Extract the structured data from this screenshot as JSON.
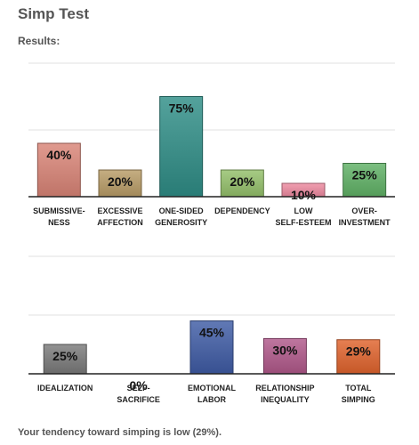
{
  "page": {
    "title": "Simp Test",
    "results_label": "Results:",
    "summary": "Your tendency toward simping is low (29%)."
  },
  "chart_data": [
    {
      "type": "bar",
      "ylim": [
        0,
        100
      ],
      "grid": true,
      "categories": [
        [
          "SUBMISSIVE-",
          "NESS"
        ],
        [
          "EXCESSIVE",
          "AFFECTION"
        ],
        [
          "ONE-SIDED",
          "GENEROSITY"
        ],
        [
          "DEPENDENCY"
        ],
        [
          "LOW",
          "SELF-ESTEEM"
        ],
        [
          "OVER-",
          "INVESTMENT"
        ]
      ],
      "values": [
        40,
        20,
        75,
        20,
        10,
        25
      ],
      "value_labels": [
        "40%",
        "20%",
        "75%",
        "20%",
        "10%",
        "25%"
      ],
      "colors": [
        "#d98476",
        "#b89c66",
        "#2f8d86",
        "#94c06a",
        "#ee8aa0",
        "#5fb165"
      ]
    },
    {
      "type": "bar",
      "ylim": [
        0,
        100
      ],
      "grid": true,
      "categories": [
        [
          "IDEALIZATION"
        ],
        [
          "SELF-",
          "SACRIFICE"
        ],
        [
          "EMOTIONAL",
          "LABOR"
        ],
        [
          "RELATIONSHIP",
          "INEQUALITY"
        ],
        [
          "TOTAL",
          "SIMPING"
        ]
      ],
      "values": [
        25,
        0,
        45,
        30,
        29
      ],
      "value_labels": [
        "25%",
        "0%",
        "45%",
        "30%",
        "29%"
      ],
      "colors": [
        "#7a7a7a",
        "#bbbbbb",
        "#3e5ba5",
        "#b0588a",
        "#e0632c"
      ]
    }
  ]
}
